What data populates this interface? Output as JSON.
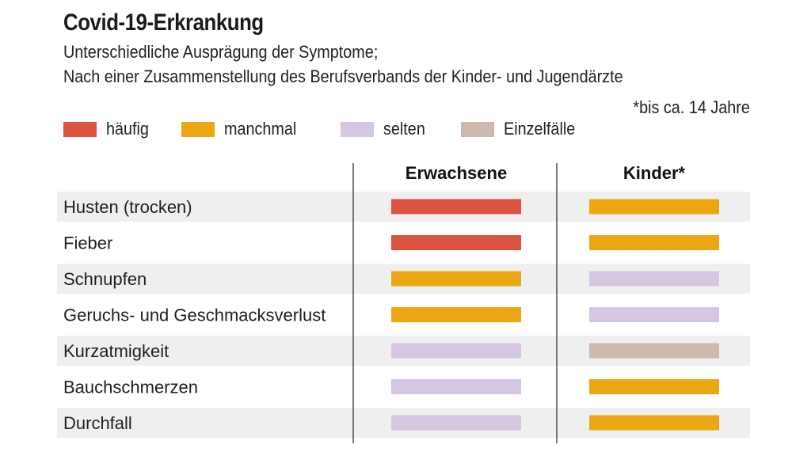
{
  "title": "Covid-19-Erkrankung",
  "subtitle_line1": "Unterschiedliche Ausprägung der Symptome;",
  "subtitle_line2": "Nach einer Zusammenstellung des Berufsverbands der Kinder- und Jugendärzte",
  "footnote": "*bis ca. 14 Jahre",
  "legend": [
    {
      "key": "haeufig",
      "label": "häufig",
      "color": "#dc5440"
    },
    {
      "key": "manchmal",
      "label": "manchmal",
      "color": "#eba714"
    },
    {
      "key": "selten",
      "label": "selten",
      "color": "#d5c6e2"
    },
    {
      "key": "einzelfaelle",
      "label": "Einzelfälle",
      "color": "#cdb9ad"
    }
  ],
  "chart_data": {
    "type": "table",
    "columns": [
      "Erwachsene",
      "Kinder*"
    ],
    "rows": [
      {
        "symptom": "Husten (trocken)",
        "values": [
          "häufig",
          "manchmal"
        ]
      },
      {
        "symptom": "Fieber",
        "values": [
          "häufig",
          "manchmal"
        ]
      },
      {
        "symptom": "Schnupfen",
        "values": [
          "manchmal",
          "selten"
        ]
      },
      {
        "symptom": "Geruchs- und Geschmacksverlust",
        "values": [
          "manchmal",
          "selten"
        ]
      },
      {
        "symptom": "Kurzatmigkeit",
        "values": [
          "selten",
          "Einzelfälle"
        ]
      },
      {
        "symptom": "Bauchschmerzen",
        "values": [
          "selten",
          "manchmal"
        ]
      },
      {
        "symptom": "Durchfall",
        "values": [
          "selten",
          "manchmal"
        ]
      }
    ],
    "row_shading": "alternating",
    "shade_color": "#efefef"
  }
}
